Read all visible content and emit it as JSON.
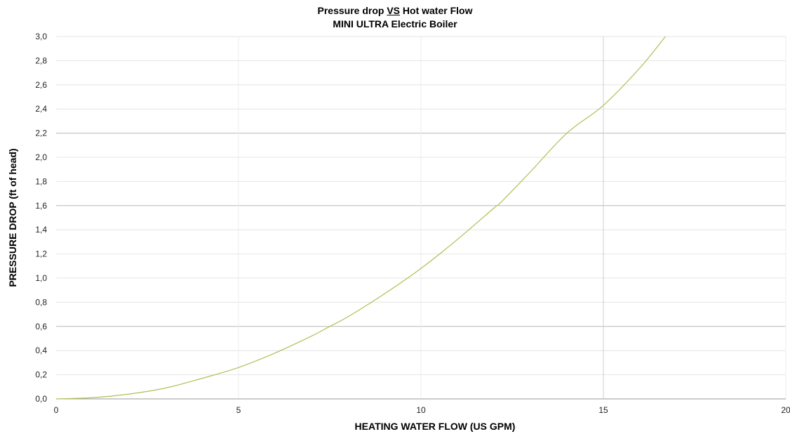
{
  "chart_data": {
    "type": "line",
    "title_part1": "Pressure drop ",
    "title_vs": "VS",
    "title_part2": " Hot water Flow",
    "subtitle": "MINI ULTRA Electric Boiler",
    "xlabel": "HEATING WATER FLOW (US GPM)",
    "ylabel": "PRESSURE DROP (ft of head)",
    "xlim": [
      0,
      20
    ],
    "ylim": [
      0,
      3
    ],
    "x_ticks": [
      "0",
      "5",
      "10",
      "15",
      "20"
    ],
    "y_ticks": [
      "0,0",
      "0,2",
      "0,4",
      "0,6",
      "0,8",
      "1,0",
      "1,2",
      "1,4",
      "1,6",
      "1,8",
      "2,0",
      "2,2",
      "2,4",
      "2,6",
      "2,8",
      "3,0"
    ],
    "grid": true,
    "line_color": "#b5bd55",
    "series": [
      {
        "x": [
          0,
          1,
          2,
          3,
          4,
          5,
          6,
          7,
          7.5,
          8,
          9,
          10,
          11,
          12,
          12.2,
          13,
          14,
          15,
          16,
          16.7
        ],
        "y": [
          0.0,
          0.01,
          0.04,
          0.09,
          0.17,
          0.26,
          0.38,
          0.52,
          0.6,
          0.68,
          0.87,
          1.08,
          1.32,
          1.58,
          1.63,
          1.88,
          2.2,
          2.43,
          2.74,
          3.0
        ]
      }
    ]
  }
}
